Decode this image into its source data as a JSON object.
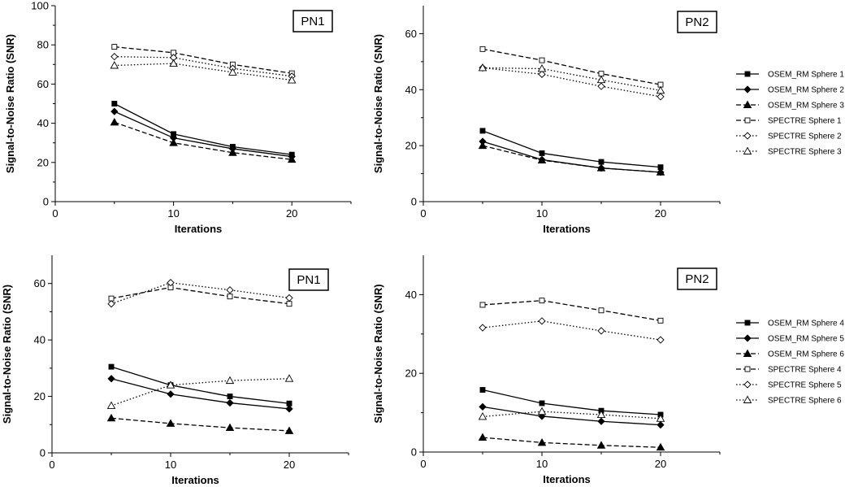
{
  "chart_data": [
    {
      "type": "line",
      "panel_label": "PN1",
      "xlabel": "Iterations",
      "ylabel": "Signal-to-Noise Ratio (SNR)",
      "xlim": [
        0,
        25
      ],
      "ylim": [
        0,
        100
      ],
      "xticks": [
        0,
        10,
        20
      ],
      "yticks": [
        0,
        20,
        40,
        60,
        80,
        100
      ],
      "x": [
        5,
        10,
        15,
        20
      ],
      "series": [
        {
          "name": "OSEM_RM Sphere 1",
          "values": [
            50,
            34.5,
            28,
            24
          ],
          "style": "solid",
          "marker": "square-filled"
        },
        {
          "name": "OSEM_RM Sphere 2",
          "values": [
            46,
            32.5,
            27,
            23
          ],
          "style": "solid",
          "marker": "diamond-filled"
        },
        {
          "name": "OSEM_RM Sphere 3",
          "values": [
            40.5,
            30,
            25,
            21.5
          ],
          "style": "dashed",
          "marker": "triangle-filled"
        },
        {
          "name": "SPECTRE Sphere 1",
          "values": [
            79,
            76,
            70,
            65.5
          ],
          "style": "dashed",
          "marker": "square-open"
        },
        {
          "name": "SPECTRE Sphere 2",
          "values": [
            74,
            73.5,
            68,
            64
          ],
          "style": "dotted",
          "marker": "diamond-open"
        },
        {
          "name": "SPECTRE Sphere 3",
          "values": [
            69.5,
            70.5,
            66,
            62
          ],
          "style": "dotted",
          "marker": "triangle-open"
        }
      ]
    },
    {
      "type": "line",
      "panel_label": "PN2",
      "xlabel": "Iterations",
      "ylabel": "Signal-to-Noise Ratio (SNR)",
      "xlim": [
        0,
        25
      ],
      "ylim": [
        0,
        70
      ],
      "xticks": [
        0,
        10,
        20
      ],
      "yticks": [
        0,
        20,
        40,
        60
      ],
      "x": [
        5,
        10,
        15,
        20
      ],
      "legend": [
        "OSEM_RM Sphere 1",
        "OSEM_RM Sphere 2",
        "OSEM_RM Sphere 3",
        "SPECTRE Sphere 1",
        "SPECTRE Sphere 2",
        "SPECTRE Sphere 3"
      ],
      "series": [
        {
          "name": "OSEM_RM Sphere 1",
          "values": [
            25.3,
            17.3,
            14.2,
            12.3
          ],
          "style": "solid",
          "marker": "square-filled"
        },
        {
          "name": "OSEM_RM Sphere 2",
          "values": [
            21.5,
            15,
            12,
            10.5
          ],
          "style": "solid",
          "marker": "diamond-filled"
        },
        {
          "name": "OSEM_RM Sphere 3",
          "values": [
            20,
            14.8,
            12,
            10.5
          ],
          "style": "dashed",
          "marker": "triangle-filled"
        },
        {
          "name": "SPECTRE Sphere 1",
          "values": [
            54.5,
            50.5,
            45.7,
            41.8
          ],
          "style": "dashed",
          "marker": "square-open"
        },
        {
          "name": "SPECTRE Sphere 2",
          "values": [
            47.8,
            45.5,
            41.2,
            37.5
          ],
          "style": "dotted",
          "marker": "diamond-open"
        },
        {
          "name": "SPECTRE Sphere 3",
          "values": [
            47.8,
            47.5,
            43.5,
            39.7
          ],
          "style": "dotted",
          "marker": "triangle-open"
        }
      ]
    },
    {
      "type": "line",
      "panel_label": "PN1",
      "xlabel": "Iterations",
      "ylabel": "Signal-to-Noise Ratio (SNR)",
      "xlim": [
        0,
        25
      ],
      "ylim": [
        0,
        70
      ],
      "xticks": [
        0,
        10,
        20
      ],
      "yticks": [
        0,
        20,
        40,
        60
      ],
      "x": [
        5,
        10,
        15,
        20
      ],
      "series": [
        {
          "name": "OSEM_RM Sphere 4",
          "values": [
            30.5,
            24,
            20,
            17.5
          ],
          "style": "solid",
          "marker": "square-filled"
        },
        {
          "name": "OSEM_RM Sphere 5",
          "values": [
            26.3,
            20.8,
            17.7,
            15.6
          ],
          "style": "solid",
          "marker": "diamond-filled"
        },
        {
          "name": "OSEM_RM Sphere 6",
          "values": [
            12.3,
            10.4,
            8.9,
            7.8
          ],
          "style": "dashed",
          "marker": "triangle-filled"
        },
        {
          "name": "SPECTRE Sphere 4",
          "values": [
            54.7,
            58.6,
            55.4,
            52.8
          ],
          "style": "dashed",
          "marker": "square-open"
        },
        {
          "name": "SPECTRE Sphere 5",
          "values": [
            52.8,
            60.3,
            57.7,
            54.9
          ],
          "style": "dotted",
          "marker": "diamond-open"
        },
        {
          "name": "SPECTRE Sphere 6",
          "values": [
            16.7,
            24,
            25.6,
            26.3
          ],
          "style": "dotted",
          "marker": "triangle-open"
        }
      ]
    },
    {
      "type": "line",
      "panel_label": "PN2",
      "xlabel": "Iterations",
      "ylabel": "Signal-to-Noise Ratio (SNR)",
      "xlim": [
        0,
        25
      ],
      "ylim": [
        0,
        50
      ],
      "xticks": [
        0,
        10,
        20
      ],
      "yticks": [
        0,
        20,
        40
      ],
      "x": [
        5,
        10,
        15,
        20
      ],
      "legend": [
        "OSEM_RM Sphere 4",
        "OSEM_RM Sphere 5",
        "OSEM_RM Sphere 6",
        "SPECTRE Sphere 4",
        "SPECTRE Sphere 5",
        "SPECTRE Sphere 6"
      ],
      "series": [
        {
          "name": "OSEM_RM Sphere 4",
          "values": [
            15.8,
            12.4,
            10.5,
            9.5
          ],
          "style": "solid",
          "marker": "square-filled"
        },
        {
          "name": "OSEM_RM Sphere 5",
          "values": [
            11.5,
            9.1,
            7.8,
            6.9
          ],
          "style": "solid",
          "marker": "diamond-filled"
        },
        {
          "name": "OSEM_RM Sphere 6",
          "values": [
            3.7,
            2.4,
            1.7,
            1.2
          ],
          "style": "dashed",
          "marker": "triangle-filled"
        },
        {
          "name": "SPECTRE Sphere 4",
          "values": [
            37.4,
            38.5,
            36,
            33.4
          ],
          "style": "dashed",
          "marker": "square-open"
        },
        {
          "name": "SPECTRE Sphere 5",
          "values": [
            31.6,
            33.3,
            30.8,
            28.5
          ],
          "style": "dotted",
          "marker": "diamond-open"
        },
        {
          "name": "SPECTRE Sphere 6",
          "values": [
            9,
            10.3,
            9.5,
            8.5
          ],
          "style": "dotted",
          "marker": "triangle-open"
        }
      ]
    }
  ]
}
